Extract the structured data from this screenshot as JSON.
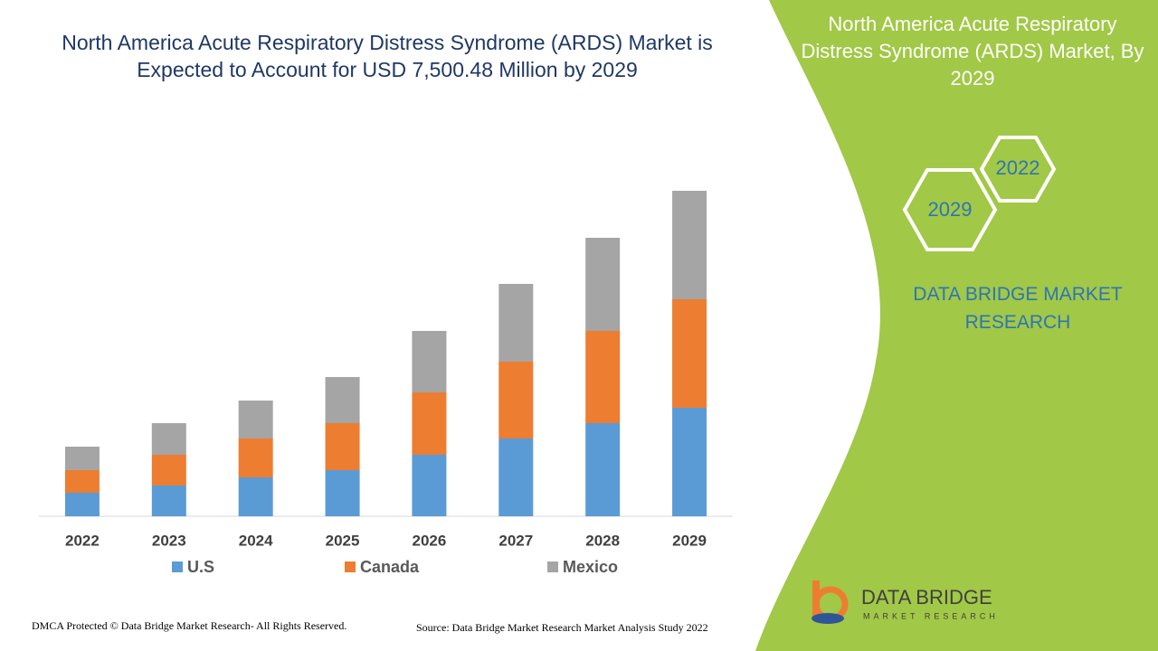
{
  "chart_data": {
    "type": "bar",
    "stacked": true,
    "title": "North America Acute Respiratory Distress Syndrome (ARDS) Market is Expected to Account for USD 7,500.48 Million by 2029",
    "categories": [
      "2022",
      "2023",
      "2024",
      "2025",
      "2026",
      "2027",
      "2028",
      "2029"
    ],
    "series": [
      {
        "name": "U.S",
        "color": "#5b9bd5",
        "values": [
          26,
          34,
          43,
          51,
          68,
          86,
          103,
          120
        ]
      },
      {
        "name": "Canada",
        "color": "#ed7d31",
        "values": [
          25,
          34,
          43,
          52,
          69,
          85,
          102,
          120
        ]
      },
      {
        "name": "Mexico",
        "color": "#a5a5a5",
        "values": [
          26,
          35,
          42,
          51,
          68,
          86,
          103,
          120
        ]
      }
    ],
    "ylim": [
      0,
      400
    ]
  },
  "panel": {
    "title": "North America Acute Respiratory Distress Syndrome (ARDS) Market, By 2029",
    "years": [
      "2022",
      "2029"
    ],
    "brand": "DATA BRIDGE MARKET RESEARCH"
  },
  "logo": {
    "name": "DATA BRIDGE",
    "tagline": "MARKET RESEARCH"
  },
  "footer": {
    "copyright": "DMCA Protected © Data Bridge Market Research- All Rights Reserved.",
    "source": "Source: Data Bridge Market Research Market Analysis Study 2022"
  }
}
